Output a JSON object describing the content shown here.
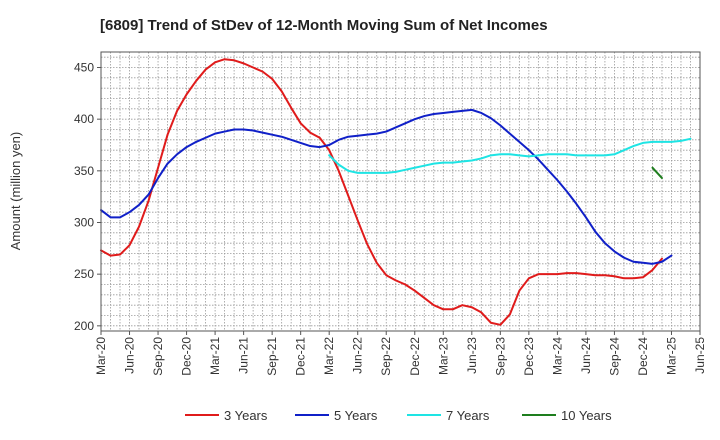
{
  "chart_data": {
    "type": "line",
    "title": "[6809]  Trend of StDev of 12-Month Moving Sum of Net Incomes",
    "ylabel": "Amount (million yen)",
    "xlabel": "",
    "ylim": [
      195,
      465
    ],
    "yticks": [
      200,
      250,
      300,
      350,
      400,
      450
    ],
    "x_start": "Mar-20",
    "x_end": "Jun-25",
    "xtick_labels": [
      "Mar-20",
      "Jun-20",
      "Sep-20",
      "Dec-20",
      "Mar-21",
      "Jun-21",
      "Sep-21",
      "Dec-21",
      "Mar-22",
      "Jun-22",
      "Sep-22",
      "Dec-22",
      "Mar-23",
      "Jun-23",
      "Sep-23",
      "Dec-23",
      "Mar-24",
      "Jun-24",
      "Sep-24",
      "Dec-24",
      "Mar-25",
      "Jun-25"
    ],
    "grid": true,
    "legend_position": "bottom",
    "series": [
      {
        "name": "3 Years",
        "color": "#e01b1b",
        "start": "Mar-20",
        "values": [
          273,
          268,
          269,
          278,
          296,
          321,
          353,
          385,
          408,
          424,
          437,
          448,
          455,
          458,
          457,
          454,
          450,
          446,
          439,
          427,
          411,
          396,
          387,
          382,
          370,
          350,
          326,
          302,
          279,
          261,
          249,
          244,
          240,
          234,
          227,
          220,
          216,
          216,
          220,
          218,
          213,
          203,
          201,
          211,
          234,
          246,
          250,
          250,
          250,
          251,
          251,
          250,
          249,
          249,
          248,
          246,
          246,
          247,
          254,
          265
        ]
      },
      {
        "name": "5 Years",
        "color": "#1020c8",
        "start": "Mar-20",
        "values": [
          312,
          305,
          305,
          310,
          317,
          327,
          343,
          357,
          366,
          373,
          378,
          382,
          386,
          388,
          390,
          390,
          389,
          387,
          385,
          383,
          380,
          377,
          374,
          373,
          375,
          380,
          383,
          384,
          385,
          386,
          388,
          392,
          396,
          400,
          403,
          405,
          406,
          407,
          408,
          409,
          406,
          401,
          394,
          386,
          378,
          370,
          361,
          351,
          341,
          330,
          318,
          305,
          291,
          280,
          272,
          266,
          262,
          261,
          260,
          262,
          268
        ]
      },
      {
        "name": "7 Years",
        "color": "#1ee4e4",
        "start": "Mar-22",
        "values": [
          365,
          356,
          350,
          348,
          348,
          348,
          348,
          349,
          351,
          353,
          355,
          357,
          358,
          358,
          359,
          360,
          362,
          365,
          366,
          366,
          365,
          364,
          365,
          366,
          366,
          366,
          365,
          365,
          365,
          365,
          366,
          370,
          374,
          377,
          378,
          378,
          378,
          379,
          381
        ]
      },
      {
        "name": "10 Years",
        "color": "#1e7e1e",
        "start": "Jan-25",
        "values": [
          353,
          343
        ]
      }
    ]
  }
}
